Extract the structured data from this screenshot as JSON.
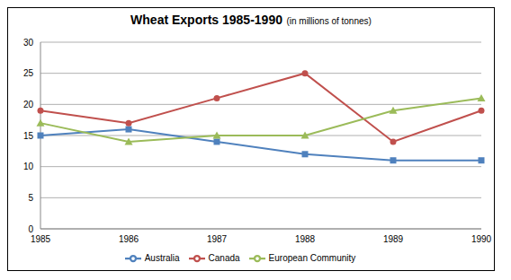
{
  "chart_data": {
    "type": "line",
    "title": "Wheat Exports 1985-1990",
    "subtitle": "(in millions of tonnes)",
    "categories": [
      "1985",
      "1986",
      "1987",
      "1988",
      "1989",
      "1990"
    ],
    "series": [
      {
        "name": "Australia",
        "color": "#4f81bd",
        "marker": "square",
        "values": [
          15,
          16,
          14,
          12,
          11,
          11
        ]
      },
      {
        "name": "Canada",
        "color": "#c0504d",
        "marker": "circle",
        "values": [
          19,
          17,
          21,
          25,
          14,
          19
        ]
      },
      {
        "name": "European Community",
        "color": "#9bbb59",
        "marker": "triangle",
        "values": [
          17,
          14,
          15,
          15,
          19,
          21
        ]
      }
    ],
    "ylim": [
      0,
      30
    ],
    "yticks": [
      0,
      5,
      10,
      15,
      20,
      25,
      30
    ],
    "grid": true,
    "legend": "bottom"
  }
}
